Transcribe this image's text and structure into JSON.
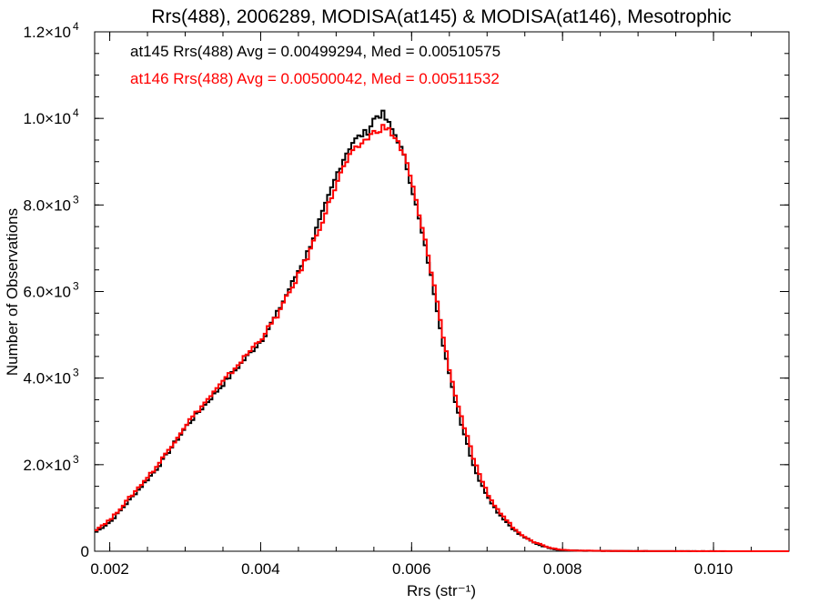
{
  "chart_data": {
    "type": "line",
    "title": "Rrs(488), 2006289, MODISA(at145) & MODISA(at146), Mesotrophic",
    "xlabel": "Rrs (str⁻¹)",
    "ylabel": "Number of Observations",
    "xlim": [
      0.0018,
      0.011
    ],
    "ylim": [
      0,
      12000
    ],
    "x_ticks": [
      {
        "value": 0.002,
        "label": "0.002"
      },
      {
        "value": 0.004,
        "label": "0.004"
      },
      {
        "value": 0.006,
        "label": "0.006"
      },
      {
        "value": 0.008,
        "label": "0.008"
      },
      {
        "value": 0.01,
        "label": "0.010"
      }
    ],
    "y_ticks": [
      {
        "value": 0,
        "label": "0"
      },
      {
        "value": 2000,
        "label": "2.0×10",
        "exp": "3"
      },
      {
        "value": 4000,
        "label": "4.0×10",
        "exp": "3"
      },
      {
        "value": 6000,
        "label": "6.0×10",
        "exp": "3"
      },
      {
        "value": 8000,
        "label": "8.0×10",
        "exp": "3"
      },
      {
        "value": 10000,
        "label": "1.0×10",
        "exp": "4"
      },
      {
        "value": 12000,
        "label": "1.2×10",
        "exp": "4"
      }
    ],
    "grid": false,
    "legend_position": "top-left",
    "series": [
      {
        "name": "at145 Rrs(488) Avg = 0.00499294, Med = 0.00510575",
        "color": "#000000",
        "x": [
          0.0018,
          0.002,
          0.0022,
          0.0024,
          0.0026,
          0.0028,
          0.003,
          0.0032,
          0.0034,
          0.0036,
          0.0038,
          0.004,
          0.0042,
          0.0044,
          0.0046,
          0.0048,
          0.005,
          0.0051,
          0.0052,
          0.0053,
          0.0054,
          0.0055,
          0.0056,
          0.0057,
          0.0058,
          0.0059,
          0.006,
          0.0061,
          0.0062,
          0.0063,
          0.0064,
          0.0065,
          0.0066,
          0.0067,
          0.0068,
          0.0069,
          0.007,
          0.0071,
          0.0072,
          0.0073,
          0.0074,
          0.0075,
          0.0076,
          0.0077,
          0.0078,
          0.0079,
          0.008,
          0.0082,
          0.0085,
          0.009,
          0.0095,
          0.01,
          0.0105,
          0.011
        ],
        "values": [
          450,
          700,
          1100,
          1500,
          1900,
          2400,
          2900,
          3300,
          3700,
          4100,
          4500,
          4900,
          5500,
          6200,
          6900,
          7800,
          8750,
          9150,
          9450,
          9600,
          9700,
          10050,
          10100,
          9800,
          9500,
          9000,
          8300,
          7500,
          6700,
          5800,
          4800,
          3900,
          3200,
          2600,
          2000,
          1550,
          1250,
          950,
          750,
          560,
          400,
          300,
          200,
          130,
          80,
          40,
          25,
          12,
          6,
          3,
          2,
          1,
          0,
          0
        ]
      },
      {
        "name": "at146 Rrs(488) Avg = 0.00500042, Med = 0.00511532",
        "color": "#ff0000",
        "x": [
          0.0018,
          0.002,
          0.0022,
          0.0024,
          0.0026,
          0.0028,
          0.003,
          0.0032,
          0.0034,
          0.0036,
          0.0038,
          0.004,
          0.0042,
          0.0044,
          0.0046,
          0.0048,
          0.005,
          0.0051,
          0.0052,
          0.0053,
          0.0054,
          0.0055,
          0.0056,
          0.0057,
          0.0058,
          0.0059,
          0.006,
          0.0061,
          0.0062,
          0.0063,
          0.0064,
          0.0065,
          0.0066,
          0.0067,
          0.0068,
          0.0069,
          0.007,
          0.0071,
          0.0072,
          0.0073,
          0.0074,
          0.0075,
          0.0076,
          0.0077,
          0.0078,
          0.0079,
          0.008,
          0.0082,
          0.0085,
          0.009,
          0.0095,
          0.01,
          0.0105,
          0.011
        ],
        "values": [
          500,
          750,
          1150,
          1550,
          1950,
          2450,
          2950,
          3350,
          3750,
          4150,
          4550,
          4950,
          5450,
          6100,
          6800,
          7650,
          8550,
          8950,
          9200,
          9400,
          9550,
          9700,
          9800,
          9700,
          9450,
          9050,
          8400,
          7600,
          6850,
          5950,
          4950,
          4050,
          3350,
          2750,
          2150,
          1650,
          1300,
          1000,
          800,
          600,
          430,
          320,
          220,
          150,
          90,
          50,
          30,
          15,
          8,
          4,
          2,
          1,
          0,
          0
        ]
      }
    ]
  }
}
